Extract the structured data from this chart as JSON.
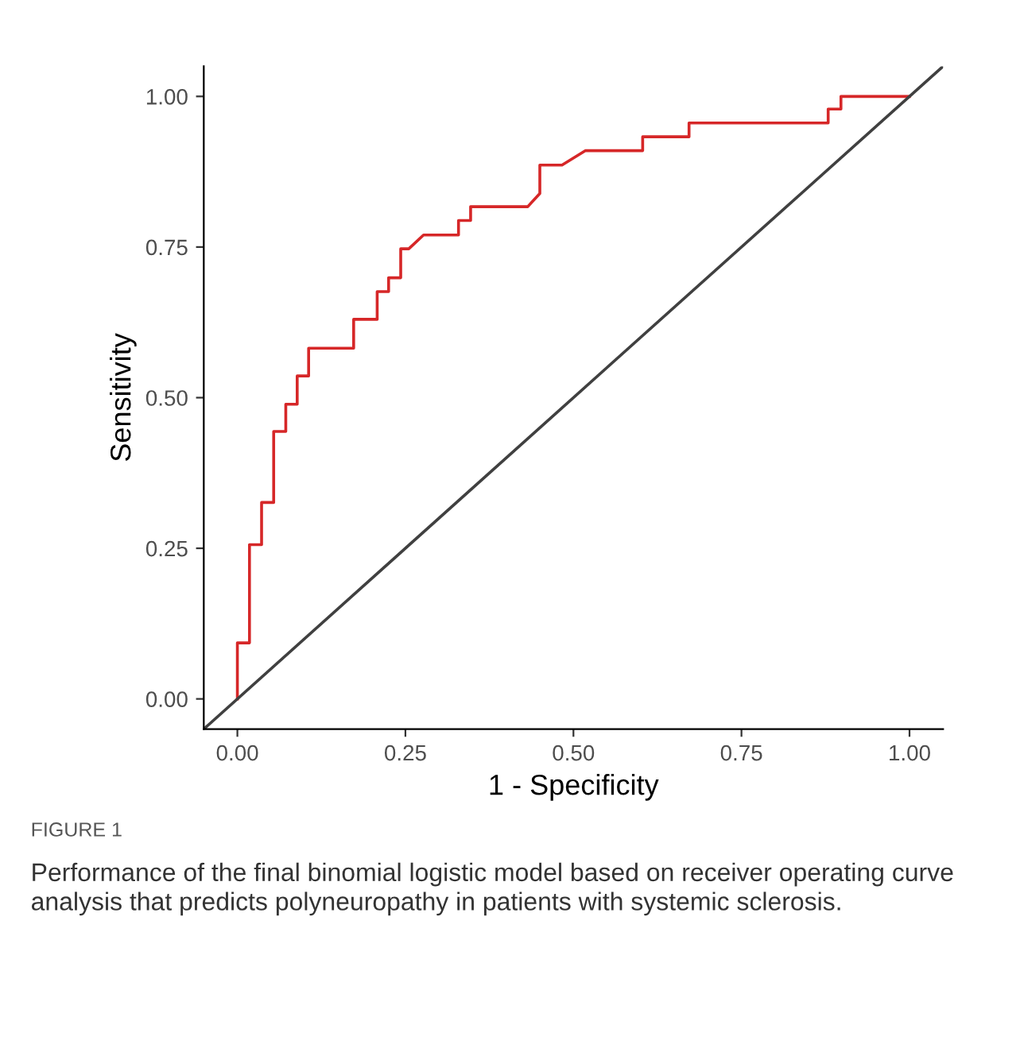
{
  "chart_data": {
    "type": "line",
    "xlabel": "1 - Specificity",
    "ylabel": "Sensitivity",
    "xlim": [
      -0.05,
      1.05
    ],
    "ylim": [
      -0.05,
      1.05
    ],
    "xticks": [
      {
        "value": 0,
        "label": "0.00"
      },
      {
        "value": 0.25,
        "label": "0.25"
      },
      {
        "value": 0.5,
        "label": "0.50"
      },
      {
        "value": 0.75,
        "label": "0.75"
      },
      {
        "value": 1,
        "label": "1.00"
      }
    ],
    "yticks": [
      {
        "value": 0,
        "label": "0.00"
      },
      {
        "value": 0.25,
        "label": "0.25"
      },
      {
        "value": 0.5,
        "label": "0.50"
      },
      {
        "value": 0.75,
        "label": "0.75"
      },
      {
        "value": 1,
        "label": "1.00"
      }
    ],
    "grid": false,
    "marker": "none",
    "line_style": "solid",
    "series": [
      {
        "color": "#d62728",
        "x": [
          0,
          0,
          0.018,
          0.018,
          0.036,
          0.036,
          0.054,
          0.054,
          0.072,
          0.072,
          0.089,
          0.089,
          0.106,
          0.106,
          0.173,
          0.173,
          0.208,
          0.208,
          0.225,
          0.225,
          0.243,
          0.243,
          0.255,
          0.277,
          0.329,
          0.329,
          0.347,
          0.347,
          0.432,
          0.45,
          0.45,
          0.483,
          0.518,
          0.603,
          0.603,
          0.672,
          0.672,
          0.879,
          0.879,
          0.898,
          0.898,
          1.0
        ],
        "values": [
          0,
          0.093,
          0.093,
          0.256,
          0.256,
          0.326,
          0.326,
          0.444,
          0.444,
          0.489,
          0.489,
          0.536,
          0.536,
          0.582,
          0.582,
          0.63,
          0.63,
          0.676,
          0.676,
          0.699,
          0.699,
          0.747,
          0.747,
          0.77,
          0.77,
          0.794,
          0.794,
          0.817,
          0.817,
          0.839,
          0.886,
          0.886,
          0.91,
          0.91,
          0.933,
          0.933,
          0.956,
          0.956,
          0.979,
          0.979,
          1.0,
          1.0
        ]
      },
      {
        "color": "#404040",
        "x": [
          -0.05,
          1.05
        ],
        "values": [
          -0.05,
          1.05
        ]
      }
    ],
    "annotations": [
      "FIGURE 1",
      "Performance of the final binomial logistic model based on receiver operating curve analysis that predicts polyneuropathy in patients with systemic sclerosis."
    ]
  }
}
